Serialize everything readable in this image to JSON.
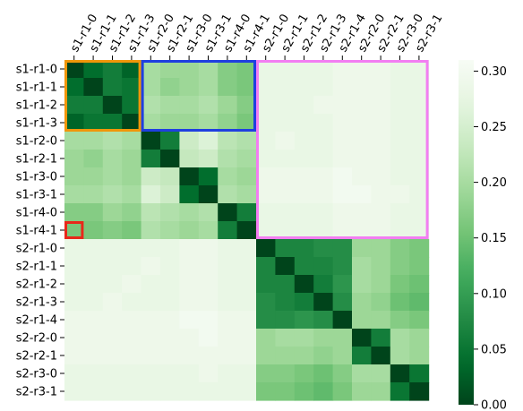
{
  "chart_data": {
    "type": "heatmap",
    "labels": [
      "s1-r1-0",
      "s1-r1-1",
      "s1-r1-2",
      "s1-r1-3",
      "s1-r2-0",
      "s1-r2-1",
      "s1-r3-0",
      "s1-r3-1",
      "s1-r4-0",
      "s1-r4-1",
      "s2-r1-0",
      "s2-r1-1",
      "s2-r1-2",
      "s2-r1-3",
      "s2-r1-4",
      "s2-r2-0",
      "s2-r2-1",
      "s2-r3-0",
      "s2-r3-1"
    ],
    "values": [
      [
        0.0,
        0.04,
        0.06,
        0.03,
        0.2,
        0.19,
        0.19,
        0.2,
        0.17,
        0.16,
        0.28,
        0.28,
        0.28,
        0.28,
        0.29,
        0.29,
        0.29,
        0.28,
        0.28
      ],
      [
        0.04,
        0.0,
        0.06,
        0.05,
        0.2,
        0.18,
        0.19,
        0.2,
        0.17,
        0.16,
        0.28,
        0.28,
        0.28,
        0.28,
        0.29,
        0.29,
        0.29,
        0.28,
        0.28
      ],
      [
        0.06,
        0.06,
        0.0,
        0.05,
        0.21,
        0.2,
        0.2,
        0.21,
        0.19,
        0.17,
        0.28,
        0.28,
        0.28,
        0.29,
        0.29,
        0.29,
        0.29,
        0.28,
        0.28
      ],
      [
        0.03,
        0.05,
        0.05,
        0.0,
        0.2,
        0.19,
        0.19,
        0.2,
        0.18,
        0.16,
        0.28,
        0.28,
        0.28,
        0.28,
        0.29,
        0.29,
        0.29,
        0.28,
        0.28
      ],
      [
        0.2,
        0.2,
        0.21,
        0.2,
        0.0,
        0.06,
        0.24,
        0.26,
        0.22,
        0.21,
        0.28,
        0.29,
        0.28,
        0.28,
        0.29,
        0.29,
        0.29,
        0.28,
        0.28
      ],
      [
        0.19,
        0.18,
        0.2,
        0.19,
        0.06,
        0.0,
        0.23,
        0.24,
        0.21,
        0.2,
        0.28,
        0.28,
        0.28,
        0.28,
        0.29,
        0.29,
        0.29,
        0.28,
        0.28
      ],
      [
        0.19,
        0.19,
        0.2,
        0.19,
        0.24,
        0.23,
        0.0,
        0.04,
        0.2,
        0.19,
        0.29,
        0.29,
        0.29,
        0.29,
        0.3,
        0.29,
        0.29,
        0.28,
        0.28
      ],
      [
        0.2,
        0.2,
        0.21,
        0.2,
        0.26,
        0.24,
        0.04,
        0.0,
        0.21,
        0.2,
        0.29,
        0.29,
        0.29,
        0.29,
        0.3,
        0.3,
        0.29,
        0.29,
        0.28
      ],
      [
        0.17,
        0.17,
        0.19,
        0.18,
        0.22,
        0.21,
        0.2,
        0.21,
        0.0,
        0.06,
        0.28,
        0.28,
        0.28,
        0.28,
        0.29,
        0.29,
        0.29,
        0.28,
        0.28
      ],
      [
        0.16,
        0.16,
        0.17,
        0.16,
        0.21,
        0.2,
        0.19,
        0.2,
        0.06,
        0.0,
        0.28,
        0.28,
        0.28,
        0.28,
        0.29,
        0.29,
        0.29,
        0.28,
        0.28
      ],
      [
        0.28,
        0.28,
        0.28,
        0.28,
        0.28,
        0.28,
        0.29,
        0.29,
        0.28,
        0.28,
        0.0,
        0.07,
        0.07,
        0.08,
        0.08,
        0.19,
        0.19,
        0.17,
        0.16
      ],
      [
        0.28,
        0.28,
        0.28,
        0.28,
        0.29,
        0.28,
        0.29,
        0.29,
        0.28,
        0.28,
        0.07,
        0.0,
        0.07,
        0.07,
        0.08,
        0.2,
        0.19,
        0.17,
        0.16
      ],
      [
        0.28,
        0.28,
        0.28,
        0.29,
        0.28,
        0.28,
        0.29,
        0.29,
        0.28,
        0.28,
        0.07,
        0.07,
        0.0,
        0.06,
        0.09,
        0.2,
        0.19,
        0.16,
        0.15
      ],
      [
        0.28,
        0.28,
        0.29,
        0.28,
        0.28,
        0.28,
        0.29,
        0.29,
        0.28,
        0.28,
        0.08,
        0.07,
        0.06,
        0.0,
        0.08,
        0.19,
        0.18,
        0.15,
        0.14
      ],
      [
        0.29,
        0.29,
        0.29,
        0.29,
        0.29,
        0.29,
        0.3,
        0.3,
        0.29,
        0.29,
        0.08,
        0.08,
        0.09,
        0.08,
        0.0,
        0.19,
        0.19,
        0.17,
        0.16
      ],
      [
        0.29,
        0.29,
        0.29,
        0.29,
        0.29,
        0.29,
        0.29,
        0.3,
        0.29,
        0.29,
        0.19,
        0.2,
        0.2,
        0.19,
        0.19,
        0.0,
        0.06,
        0.2,
        0.19
      ],
      [
        0.29,
        0.29,
        0.29,
        0.29,
        0.29,
        0.29,
        0.29,
        0.29,
        0.29,
        0.29,
        0.19,
        0.19,
        0.19,
        0.18,
        0.19,
        0.06,
        0.0,
        0.2,
        0.19
      ],
      [
        0.28,
        0.28,
        0.28,
        0.28,
        0.28,
        0.28,
        0.28,
        0.29,
        0.28,
        0.28,
        0.17,
        0.17,
        0.16,
        0.15,
        0.17,
        0.2,
        0.2,
        0.0,
        0.05
      ],
      [
        0.28,
        0.28,
        0.28,
        0.28,
        0.28,
        0.28,
        0.28,
        0.28,
        0.28,
        0.28,
        0.16,
        0.16,
        0.15,
        0.14,
        0.16,
        0.19,
        0.19,
        0.05,
        0.0
      ]
    ],
    "colorbar": {
      "min": 0.0,
      "max": 0.31,
      "ticks": [
        "0.00",
        "0.05",
        "0.10",
        "0.15",
        "0.20",
        "0.25",
        "0.30"
      ],
      "colormap": "Greens_r"
    },
    "highlights": [
      {
        "color": "#f0960a",
        "rows": [
          0,
          3
        ],
        "cols": [
          0,
          3
        ]
      },
      {
        "color": "#1f3fe0",
        "rows": [
          0,
          3
        ],
        "cols": [
          4,
          9
        ]
      },
      {
        "color": "#f27ef2",
        "rows": [
          0,
          9
        ],
        "cols": [
          10,
          18
        ]
      },
      {
        "color": "#e8281a",
        "rows": [
          9,
          9
        ],
        "cols": [
          0,
          0
        ]
      }
    ]
  }
}
